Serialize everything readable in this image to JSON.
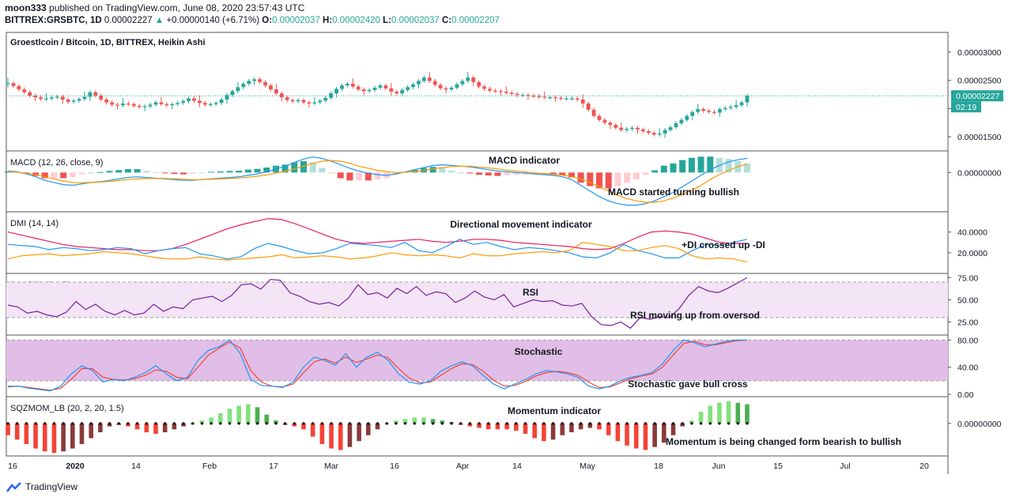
{
  "header": {
    "author": "moon333",
    "published_text": "published on TradingView.com, June 08, 2020 23:57:43 UTC",
    "symbol": "BITTREX:GRSBTC, 1D",
    "last": "0.00002227",
    "change": "+0.00000140 (+6.71%)",
    "o_label": "O:",
    "o_value": "0.00002037",
    "h_label": "H:",
    "h_value": "0.00002420",
    "l_label": "L:",
    "l_value": "0.00002037",
    "c_label": "C:",
    "c_value": "0.00002207"
  },
  "footer": {
    "brand": "TradingView"
  },
  "chart_data": {
    "type": "candlestick",
    "title": "Groestlcoin / Bitcoin, 1D, BITTREX, Heikin Ashi",
    "price_ticks": [
      "0.00003000",
      "0.00002500",
      "0.000",
      "0.00001500"
    ],
    "price_ylim": [
      1.25e-05,
      3.35e-05
    ],
    "last_price_label": "0.00002227",
    "countdown_label": "02:19",
    "x_tick_labels": [
      "16",
      "2020",
      "14",
      "Feb",
      "17",
      "Mar",
      "16",
      "Apr",
      "14",
      "May",
      "18",
      "Jun",
      "15",
      "Jul",
      "20"
    ],
    "price_series": [
      24.5,
      24.0,
      23.4,
      22.9,
      22.3,
      22.0,
      21.7,
      21.8,
      22.0,
      22.1,
      21.6,
      21.2,
      21.4,
      21.7,
      22.1,
      22.9,
      22.3,
      21.6,
      21.1,
      20.7,
      20.6,
      20.9,
      20.8,
      20.5,
      20.3,
      20.4,
      20.7,
      21.1,
      20.8,
      20.6,
      20.8,
      21.0,
      21.3,
      21.8,
      21.4,
      21.0,
      20.7,
      20.8,
      21.0,
      21.6,
      22.4,
      23.1,
      23.8,
      24.4,
      24.9,
      25.2,
      24.7,
      24.1,
      23.4,
      22.7,
      22.0,
      21.5,
      21.3,
      21.5,
      21.1,
      20.9,
      21.1,
      21.4,
      21.9,
      22.7,
      23.5,
      24.1,
      24.4,
      23.9,
      23.4,
      23.1,
      23.3,
      23.7,
      24.1,
      23.6,
      23.0,
      22.7,
      23.3,
      23.8,
      24.3,
      24.9,
      25.5,
      24.9,
      24.2,
      23.6,
      23.4,
      23.7,
      24.3,
      24.9,
      25.5,
      24.7,
      23.9,
      23.5,
      23.2,
      23.1,
      23.0,
      22.8,
      22.6,
      22.4,
      22.4,
      22.3,
      22.2,
      22.1,
      22.0,
      22.0,
      21.9,
      21.8,
      21.8,
      21.8,
      21.6,
      20.9,
      19.8,
      18.7,
      18.0,
      17.5,
      17.1,
      16.6,
      16.2,
      16.4,
      16.6,
      16.3,
      16.0,
      15.7,
      15.4,
      15.6,
      16.2,
      16.7,
      17.4,
      18.0,
      18.7,
      19.4,
      19.9,
      19.6,
      19.4,
      19.3,
      19.9,
      20.1,
      20.3,
      20.6,
      21.1,
      22.27
    ],
    "indicators": [
      {
        "name": "MACD (12, 26, close, 9)",
        "annotation": "MACD indicator",
        "note": "MACD started turning bullish",
        "ticks": [
          "0.00000000"
        ],
        "macd": [
          0.1,
          0.05,
          -0.1,
          -0.3,
          -0.55,
          -0.7,
          -0.85,
          -0.9,
          -0.8,
          -0.7,
          -0.65,
          -0.55,
          -0.45,
          -0.35,
          -0.3,
          -0.35,
          -0.4,
          -0.45,
          -0.5,
          -0.55,
          -0.55,
          -0.5,
          -0.45,
          -0.4,
          -0.35,
          -0.3,
          -0.2,
          -0.1,
          0.05,
          0.25,
          0.45,
          0.7,
          0.95,
          1.1,
          1.0,
          0.8,
          0.55,
          0.3,
          0.1,
          -0.05,
          -0.15,
          -0.2,
          -0.1,
          0.05,
          0.2,
          0.35,
          0.5,
          0.55,
          0.5,
          0.45,
          0.4,
          0.3,
          0.2,
          0.1,
          0.05,
          0.0,
          -0.05,
          -0.1,
          -0.15,
          -0.2,
          -0.3,
          -0.5,
          -0.9,
          -1.3,
          -1.7,
          -2.0,
          -2.2,
          -2.3,
          -2.3,
          -2.2,
          -2.0,
          -1.7,
          -1.4,
          -1.0,
          -0.6,
          -0.2,
          0.2,
          0.5,
          0.75,
          0.9,
          1.0
        ],
        "signal": [
          0.05,
          0.02,
          -0.05,
          -0.15,
          -0.3,
          -0.45,
          -0.6,
          -0.7,
          -0.72,
          -0.7,
          -0.67,
          -0.62,
          -0.56,
          -0.5,
          -0.45,
          -0.42,
          -0.41,
          -0.42,
          -0.44,
          -0.47,
          -0.5,
          -0.5,
          -0.48,
          -0.45,
          -0.42,
          -0.38,
          -0.33,
          -0.26,
          -0.17,
          -0.05,
          0.1,
          0.25,
          0.45,
          0.65,
          0.8,
          0.85,
          0.8,
          0.65,
          0.45,
          0.3,
          0.15,
          0.05,
          0.0,
          0.02,
          0.08,
          0.15,
          0.25,
          0.35,
          0.42,
          0.45,
          0.44,
          0.4,
          0.33,
          0.25,
          0.17,
          0.1,
          0.04,
          -0.02,
          -0.07,
          -0.12,
          -0.18,
          -0.28,
          -0.45,
          -0.7,
          -1.0,
          -1.3,
          -1.6,
          -1.85,
          -2.0,
          -2.1,
          -2.1,
          -2.0,
          -1.8,
          -1.55,
          -1.25,
          -0.9,
          -0.5,
          -0.15,
          0.15,
          0.4,
          0.6
        ]
      },
      {
        "name": "DMI (14, 14)",
        "annotation": "Directional movement indicator",
        "note": "+DI crossed up -DI",
        "ticks": [
          "40.0000",
          "20.0000"
        ],
        "adx": [
          40,
          37,
          34,
          31,
          28,
          26,
          25,
          24,
          23,
          23,
          22,
          22,
          24,
          28,
          33,
          38,
          43,
          47,
          50,
          53,
          52,
          48,
          43,
          38,
          33,
          30,
          29,
          30,
          31,
          32,
          33,
          31,
          30,
          31,
          33,
          33,
          32,
          30,
          29,
          28,
          27,
          26,
          24,
          23,
          24,
          29,
          35,
          40,
          41,
          40,
          38,
          34,
          30,
          29,
          29
        ],
        "plus_di": [
          28,
          27,
          26,
          23,
          25,
          24,
          22,
          23,
          25,
          24,
          19,
          22,
          24,
          25,
          19,
          17,
          14,
          16,
          24,
          29,
          26,
          22,
          19,
          20,
          24,
          29,
          28,
          27,
          25,
          30,
          22,
          20,
          26,
          33,
          28,
          30,
          26,
          23,
          25,
          24,
          22,
          20,
          16,
          15,
          20,
          28,
          22,
          19,
          15,
          15,
          22,
          28,
          27,
          30,
          33
        ],
        "minus_di": [
          14,
          17,
          18,
          19,
          17,
          18,
          19,
          21,
          20,
          19,
          17,
          15,
          14,
          14,
          16,
          14,
          13,
          14,
          15,
          16,
          18,
          15,
          16,
          17,
          16,
          14,
          15,
          17,
          20,
          18,
          17,
          18,
          17,
          15,
          19,
          17,
          17,
          19,
          20,
          21,
          20,
          22,
          30,
          28,
          26,
          22,
          22,
          25,
          27,
          24,
          17,
          14,
          15,
          14,
          11
        ]
      },
      {
        "name": "RSI (14, close)",
        "annotation": "RSI",
        "note": "RSI moving up from oversod",
        "ticks": [
          "75.00",
          "50.00",
          "25.00"
        ],
        "band": [
          30,
          70
        ],
        "values": [
          44,
          42,
          35,
          37,
          33,
          31,
          36,
          48,
          39,
          45,
          37,
          33,
          38,
          33,
          35,
          45,
          37,
          42,
          40,
          50,
          52,
          54,
          48,
          55,
          67,
          68,
          62,
          73,
          72,
          58,
          54,
          48,
          45,
          47,
          43,
          52,
          67,
          56,
          58,
          52,
          63,
          57,
          65,
          55,
          59,
          57,
          47,
          52,
          60,
          53,
          50,
          56,
          42,
          46,
          50,
          48,
          49,
          44,
          43,
          46,
          31,
          22,
          21,
          25,
          18,
          30,
          28,
          31,
          30,
          40,
          55,
          65,
          60,
          58,
          63,
          69,
          75
        ]
      },
      {
        "name": "Stoch (14, 3, 3)",
        "annotation": "Stochastic",
        "note": "Stochastic gave bull cross",
        "ticks": [
          "80.00",
          "40.00",
          "0.00"
        ],
        "band": [
          20,
          80
        ],
        "k": [
          12,
          12,
          9,
          7,
          5,
          12,
          30,
          42,
          35,
          18,
          22,
          20,
          25,
          32,
          42,
          30,
          20,
          25,
          50,
          65,
          70,
          80,
          60,
          22,
          13,
          12,
          10,
          18,
          40,
          55,
          50,
          43,
          60,
          40,
          55,
          62,
          50,
          30,
          18,
          15,
          20,
          34,
          42,
          48,
          42,
          28,
          15,
          8,
          15,
          22,
          30,
          35,
          33,
          30,
          25,
          12,
          8,
          12,
          20,
          25,
          28,
          32,
          45,
          65,
          80,
          76,
          70,
          74,
          78,
          80,
          80
        ],
        "d": [
          11,
          12,
          10,
          8,
          6,
          9,
          22,
          38,
          38,
          25,
          22,
          21,
          23,
          28,
          36,
          34,
          25,
          23,
          40,
          58,
          68,
          77,
          68,
          35,
          18,
          12,
          11,
          15,
          32,
          48,
          52,
          46,
          55,
          47,
          52,
          58,
          54,
          38,
          24,
          17,
          18,
          28,
          38,
          45,
          44,
          34,
          21,
          12,
          13,
          19,
          27,
          32,
          34,
          32,
          28,
          18,
          10,
          11,
          17,
          23,
          27,
          30,
          40,
          58,
          75,
          78,
          73,
          73,
          76,
          79,
          80
        ]
      },
      {
        "name": "SQZMOM_LB (20, 2, 20, 1.5)",
        "annotation": "Momentum indicator",
        "note": "Momentum is being changed form bearish to bullish",
        "ticks": [
          "0.00000000"
        ],
        "values": [
          -0.4,
          -0.55,
          -0.7,
          -0.85,
          -0.95,
          -1.0,
          -0.95,
          -0.85,
          -0.7,
          -0.5,
          -0.3,
          -0.1,
          -0.05,
          -0.1,
          -0.2,
          -0.3,
          -0.35,
          -0.3,
          -0.2,
          -0.1,
          0.0,
          0.1,
          0.2,
          0.35,
          0.5,
          0.6,
          0.65,
          0.55,
          0.3,
          0.1,
          -0.05,
          -0.1,
          -0.2,
          -0.45,
          -0.7,
          -0.85,
          -0.9,
          -0.8,
          -0.6,
          -0.4,
          -0.2,
          0.0,
          0.1,
          0.15,
          0.2,
          0.2,
          0.15,
          0.1,
          0.05,
          -0.05,
          -0.1,
          -0.15,
          -0.2,
          -0.2,
          -0.2,
          -0.25,
          -0.35,
          -0.5,
          -0.6,
          -0.55,
          -0.4,
          -0.3,
          -0.2,
          -0.15,
          -0.2,
          -0.4,
          -0.6,
          -0.75,
          -0.85,
          -0.9,
          -0.8,
          -0.65,
          -0.4,
          -0.1,
          0.1,
          0.4,
          0.6,
          0.7,
          0.75,
          0.7,
          0.65
        ]
      }
    ],
    "colors": {
      "up": "#26a69a",
      "down": "#ef5350",
      "macd": "#2196f3",
      "signal": "#ff9800",
      "adx": "#e91e63",
      "plus_di": "#2196f3",
      "minus_di": "#ff9800",
      "rsi": "#7b1fa2",
      "rsi_band": "#f3e5f5",
      "stoch_band": "#e1bee7",
      "mom_up": "#4caf50",
      "mom_up_light": "#81e27c",
      "mom_down": "#f44336",
      "mom_down_dark": "#8b3a3a"
    }
  }
}
